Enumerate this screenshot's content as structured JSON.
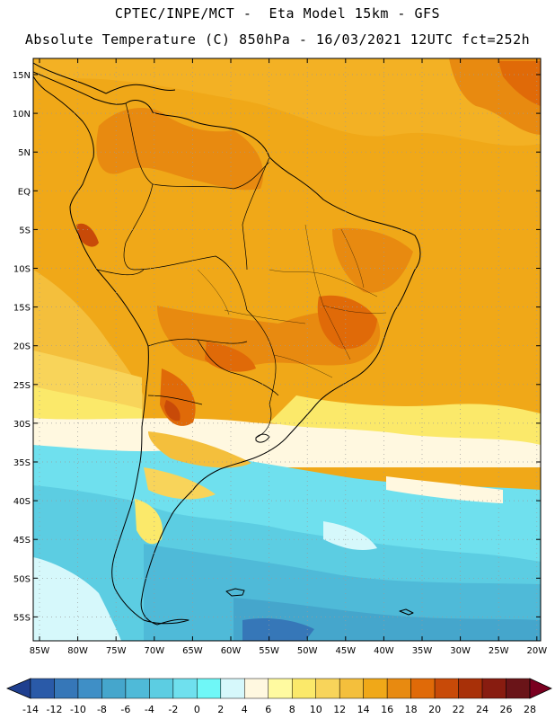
{
  "header": {
    "line1": "CPTEC/INPE/MCT -  Eta Model 15km - GFS",
    "line2": "Absolute Temperature (C) 850hPa - 16/03/2021 12UTC fct=252h"
  },
  "map": {
    "region": "South America",
    "variable": "temperature at 850hPa",
    "lat_labels": [
      "15N",
      "10N",
      "5N",
      "EQ",
      "5S",
      "10S",
      "15S",
      "20S",
      "25S",
      "30S",
      "35S",
      "40S",
      "45S",
      "50S",
      "55S"
    ],
    "lon_labels": [
      "85W",
      "80W",
      "75W",
      "70W",
      "65W",
      "60W",
      "55W",
      "50W",
      "45W",
      "40W",
      "35W",
      "30W",
      "25W",
      "20W"
    ]
  },
  "colorbar": {
    "labels": [
      "-14",
      "-12",
      "-10",
      "-8",
      "-6",
      "-4",
      "-2",
      "0",
      "2",
      "4",
      "6",
      "8",
      "10",
      "12",
      "14",
      "16",
      "18",
      "20",
      "22",
      "24",
      "26",
      "28"
    ],
    "colors": [
      "#1f3f8f",
      "#2a5aa8",
      "#3677b8",
      "#3f8fc6",
      "#45a6cc",
      "#4fbad8",
      "#5ccde2",
      "#6fe0ee",
      "#6ff7f7",
      "#d6f8fb",
      "#fff8e0",
      "#fffaa0",
      "#fbe96a",
      "#f8d45a",
      "#f4bf3c",
      "#f0a818",
      "#e88a10",
      "#e06a08",
      "#c84a08",
      "#a83008",
      "#881c10",
      "#6a1418",
      "#7a0020"
    ]
  }
}
